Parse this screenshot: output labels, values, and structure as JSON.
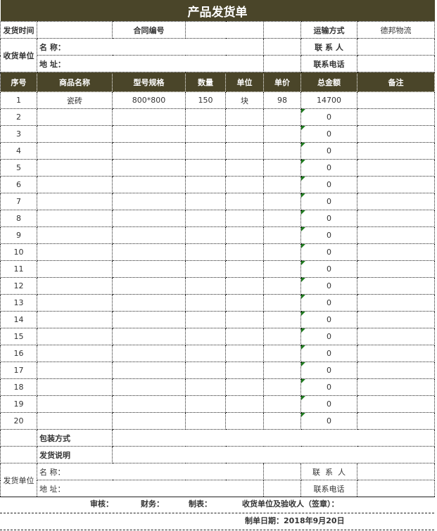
{
  "title": "产品发货单",
  "info": {
    "ship_time_label": "发货时间",
    "ship_time": "",
    "contract_label": "合同编号",
    "contract_no": "",
    "transport_label": "运输方式",
    "transport": "德邦物流",
    "receiver_label": "收货单位",
    "name_label": "名 称：",
    "address_label": "地 址：",
    "contact_label": "联 系 人",
    "phone_label": "联系电话"
  },
  "columns": [
    "序号",
    "商品名称",
    "型号规格",
    "数量",
    "单位",
    "单价",
    "总金额",
    "备注"
  ],
  "items": [
    [
      "1",
      "瓷砖",
      "800*800",
      "150",
      "块",
      "98",
      "14700",
      ""
    ],
    [
      "2",
      "",
      "",
      "",
      "",
      "",
      "0",
      ""
    ],
    [
      "3",
      "",
      "",
      "",
      "",
      "",
      "0",
      ""
    ],
    [
      "4",
      "",
      "",
      "",
      "",
      "",
      "0",
      ""
    ],
    [
      "5",
      "",
      "",
      "",
      "",
      "",
      "0",
      ""
    ],
    [
      "6",
      "",
      "",
      "",
      "",
      "",
      "0",
      ""
    ],
    [
      "7",
      "",
      "",
      "",
      "",
      "",
      "0",
      ""
    ],
    [
      "8",
      "",
      "",
      "",
      "",
      "",
      "0",
      ""
    ],
    [
      "9",
      "",
      "",
      "",
      "",
      "",
      "0",
      ""
    ],
    [
      "10",
      "",
      "",
      "",
      "",
      "",
      "0",
      ""
    ],
    [
      "11",
      "",
      "",
      "",
      "",
      "",
      "0",
      ""
    ],
    [
      "12",
      "",
      "",
      "",
      "",
      "",
      "0",
      ""
    ],
    [
      "13",
      "",
      "",
      "",
      "",
      "",
      "0",
      ""
    ],
    [
      "14",
      "",
      "",
      "",
      "",
      "",
      "0",
      ""
    ],
    [
      "15",
      "",
      "",
      "",
      "",
      "",
      "0",
      ""
    ],
    [
      "16",
      "",
      "",
      "",
      "",
      "",
      "0",
      ""
    ],
    [
      "17",
      "",
      "",
      "",
      "",
      "",
      "0",
      ""
    ],
    [
      "18",
      "",
      "",
      "",
      "",
      "",
      "0",
      ""
    ],
    [
      "19",
      "",
      "",
      "",
      "",
      "",
      "0",
      ""
    ],
    [
      "20",
      "",
      "",
      "",
      "",
      "",
      "0",
      ""
    ]
  ],
  "packing_label": "包装方式",
  "notes_label": "发货说明",
  "sender": {
    "label": "发货单位",
    "name_label": "名 称：",
    "address_label": "地 址：",
    "contact_label": "联  系  人",
    "phone_label": "联系电话"
  },
  "footer": {
    "review": "审核：",
    "finance": "财务：",
    "prepared": "制表：",
    "receiver_sign": "收货单位及验收人（签章）：",
    "date": "制单日期：2018年9月20日"
  },
  "colors": {
    "header_bg": "#4a4529",
    "marker": "#1e7a1e"
  }
}
